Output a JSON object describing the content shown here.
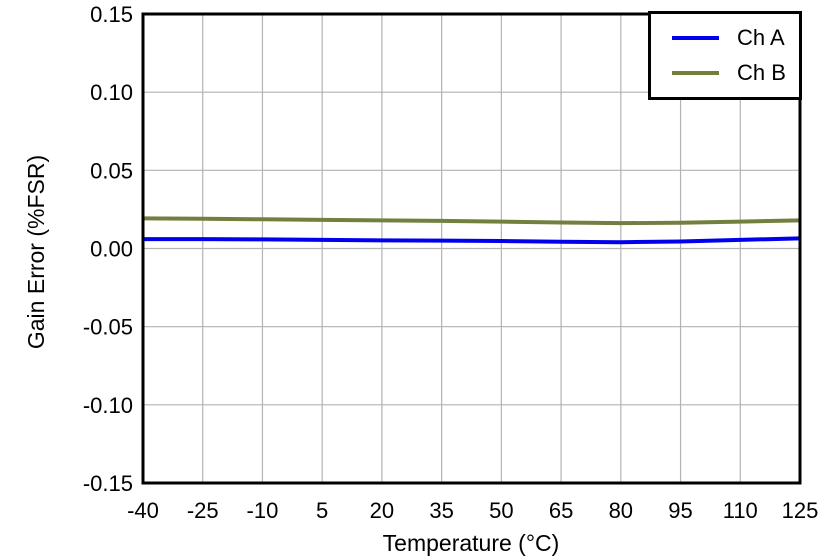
{
  "legend": {
    "entries": [
      {
        "label": "Ch A",
        "color": "#0000EE"
      },
      {
        "label": "Ch B",
        "color": "#71803F"
      }
    ]
  },
  "chart_data": {
    "type": "line",
    "title": "",
    "xlabel": "Temperature (°C)",
    "ylabel": "Gain Error (%FSR)",
    "xlim": [
      -40,
      125
    ],
    "ylim": [
      -0.15,
      0.15
    ],
    "grid": true,
    "legend_position": "top-right-inside",
    "x_tick_labels": [
      "-40",
      "-25",
      "-10",
      "5",
      "20",
      "35",
      "50",
      "65",
      "80",
      "95",
      "110",
      "125"
    ],
    "y_tick_labels": [
      "0.15",
      "0.10",
      "0.05",
      "0.00",
      "-0.05",
      "-0.10",
      "-0.15"
    ],
    "x": [
      -40,
      -25,
      -10,
      5,
      20,
      35,
      50,
      65,
      80,
      95,
      110,
      125
    ],
    "series": [
      {
        "name": "Ch A",
        "color": "#0000EE",
        "values": [
          0.006,
          0.006,
          0.0058,
          0.0055,
          0.0052,
          0.005,
          0.0048,
          0.0043,
          0.004,
          0.0045,
          0.0055,
          0.0065
        ]
      },
      {
        "name": "Ch B",
        "color": "#71803F",
        "values": [
          0.0193,
          0.019,
          0.0187,
          0.0183,
          0.018,
          0.0177,
          0.0172,
          0.0166,
          0.0162,
          0.0165,
          0.0172,
          0.018
        ]
      }
    ],
    "colors": {
      "grid": "#B3B3B3",
      "axis": "#000000",
      "background": "#FFFFFF"
    }
  }
}
